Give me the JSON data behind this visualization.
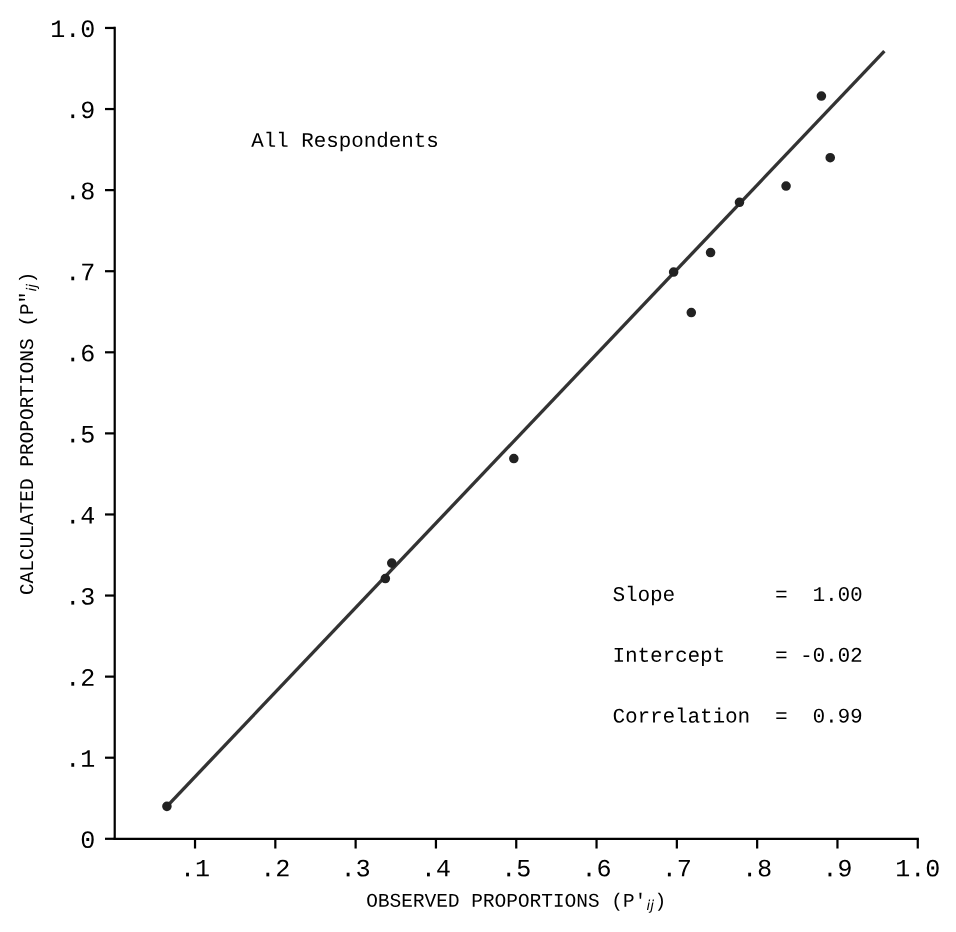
{
  "chart_data": {
    "type": "scatter",
    "xlabel": "OBSERVED PROPORTIONS (P′$_{ij}$)",
    "ylabel": "CALCULATED PROPORTIONS (P″$_{ij}$)",
    "annotations": [
      "All Respondents",
      "Slope        =  1.00",
      "Intercept    = -0.02",
      "Correlation  =  0.99"
    ],
    "series": [
      {
        "color": "#222222",
        "x": [
          0.065,
          0.337,
          0.345,
          0.497,
          0.696,
          0.718,
          0.742,
          0.778,
          0.836,
          0.88,
          0.891
        ],
        "values": [
          0.04,
          0.321,
          0.34,
          0.469,
          0.699,
          0.649,
          0.723,
          0.785,
          0.805,
          0.916,
          0.84
        ]
      },
      {
        "type": "line",
        "marker": "none",
        "color": "#333333",
        "x": [
          0.065,
          0.957
        ],
        "values": [
          0.04,
          0.97
        ]
      }
    ],
    "xlim": [
      0,
      1.0
    ],
    "ylim": [
      0,
      1.0
    ],
    "xticks": [
      {
        "value": 0.1,
        "label": ".1"
      },
      {
        "value": 0.2,
        "label": ".2"
      },
      {
        "value": 0.3,
        "label": ".3"
      },
      {
        "value": 0.4,
        "label": ".4"
      },
      {
        "value": 0.5,
        "label": ".5"
      },
      {
        "value": 0.6,
        "label": ".6"
      },
      {
        "value": 0.7,
        "label": ".7"
      },
      {
        "value": 0.8,
        "label": ".8"
      },
      {
        "value": 0.9,
        "label": ".9"
      },
      {
        "value": 1.0,
        "label": "1.0"
      }
    ],
    "yticks": [
      0,
      {
        "value": 0.1,
        "label": ".1"
      },
      {
        "value": 0.2,
        "label": ".2"
      },
      {
        "value": 0.3,
        "label": ".3"
      },
      {
        "value": 0.4,
        "label": ".4"
      },
      {
        "value": 0.5,
        "label": ".5"
      },
      {
        "value": 0.6,
        "label": ".6"
      },
      {
        "value": 0.7,
        "label": ".7"
      },
      {
        "value": 0.8,
        "label": ".8"
      },
      {
        "value": 0.9,
        "label": ".9"
      },
      {
        "value": 1.0,
        "label": "1.0"
      }
    ],
    "marker": "circle",
    "grid": false,
    "legend": false
  }
}
